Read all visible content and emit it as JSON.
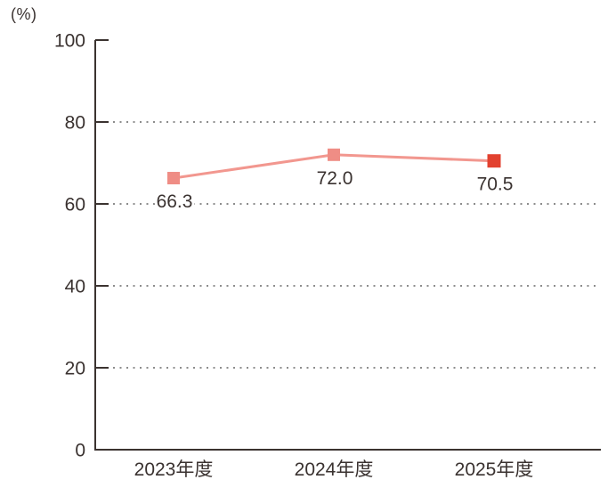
{
  "chart_data": {
    "type": "line",
    "title": "",
    "unit_label": "(%)",
    "categories": [
      "2023年度",
      "2024年度",
      "2025年度"
    ],
    "series": [
      {
        "name": "rate",
        "values": [
          66.3,
          72.0,
          70.5
        ],
        "point_labels": [
          "66.3",
          "72.0",
          "70.5"
        ],
        "line_color": "#f2978f",
        "marker_colors": [
          "#ef8d85",
          "#ef8d85",
          "#e2412f"
        ]
      }
    ],
    "ylim": [
      0,
      100
    ],
    "yticks": [
      0,
      20,
      40,
      60,
      80,
      100
    ],
    "ytick_labels": [
      "0",
      "20",
      "40",
      "60",
      "80",
      "100"
    ],
    "grid": "dotted-horizontal",
    "gridline_values": [
      20,
      40,
      60,
      80
    ],
    "legend": "none",
    "colors": {
      "axis": "#3b3330",
      "text": "#3a3230",
      "gridline": "#8c8c8c"
    }
  }
}
